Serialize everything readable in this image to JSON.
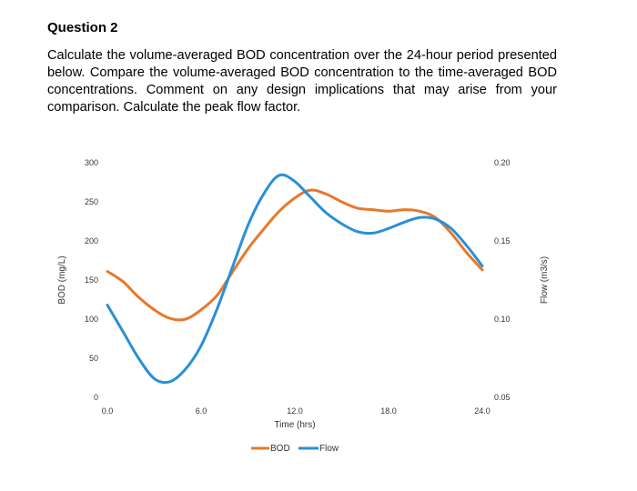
{
  "question": {
    "heading": "Question 2",
    "text": "Calculate the volume-averaged BOD concentration over the 24-hour period presented below. Compare the volume-averaged BOD concentration to the time-averaged BOD concentrations.  Comment on any design implications that may arise from your comparison. Calculate the peak flow factor."
  },
  "chart_data": {
    "type": "line",
    "xlabel": "Time (hrs)",
    "ylabel": "BOD (mg/L)",
    "y2label": "Flow (m3/s)",
    "xlim": [
      0,
      24
    ],
    "ylim": [
      0,
      300
    ],
    "y2lim": [
      0.05,
      0.2
    ],
    "x_ticks": [
      0,
      6,
      12,
      18,
      24
    ],
    "x_tick_labels": [
      "0.0",
      "6.0",
      "12.0",
      "18.0",
      "24.0"
    ],
    "y_ticks": [
      0,
      50,
      100,
      150,
      200,
      250,
      300
    ],
    "y_tick_labels": [
      "0",
      "50",
      "100",
      "150",
      "200",
      "250",
      "300"
    ],
    "y2_ticks": [
      0.05,
      0.1,
      0.15,
      0.2
    ],
    "y2_tick_labels": [
      "0.05",
      "0.10",
      "0.15",
      "0.20"
    ],
    "grid": false,
    "legend": "bottom",
    "series": [
      {
        "name": "BOD",
        "axis": "left",
        "color": "#e8782a",
        "x": [
          0,
          1,
          2,
          3,
          4,
          5,
          6,
          7,
          8,
          9,
          10,
          11,
          12,
          13,
          14,
          15,
          16,
          17,
          18,
          19,
          20,
          21,
          22,
          23,
          24
        ],
        "y": [
          161,
          148,
          128,
          112,
          101,
          100,
          112,
          130,
          160,
          190,
          215,
          238,
          255,
          265,
          260,
          250,
          242,
          240,
          238,
          240,
          238,
          230,
          210,
          185,
          163
        ]
      },
      {
        "name": "Flow",
        "axis": "right",
        "color": "#2a8fd6",
        "x": [
          0,
          1,
          2,
          3,
          4,
          5,
          6,
          7,
          8,
          9,
          10,
          11,
          12,
          13,
          14,
          15,
          16,
          17,
          18,
          19,
          20,
          21,
          22,
          23,
          24
        ],
        "y": [
          0.109,
          0.092,
          0.075,
          0.062,
          0.06,
          0.068,
          0.083,
          0.106,
          0.133,
          0.16,
          0.18,
          0.192,
          0.188,
          0.178,
          0.168,
          0.161,
          0.156,
          0.155,
          0.158,
          0.162,
          0.165,
          0.164,
          0.158,
          0.147,
          0.134
        ]
      }
    ]
  }
}
